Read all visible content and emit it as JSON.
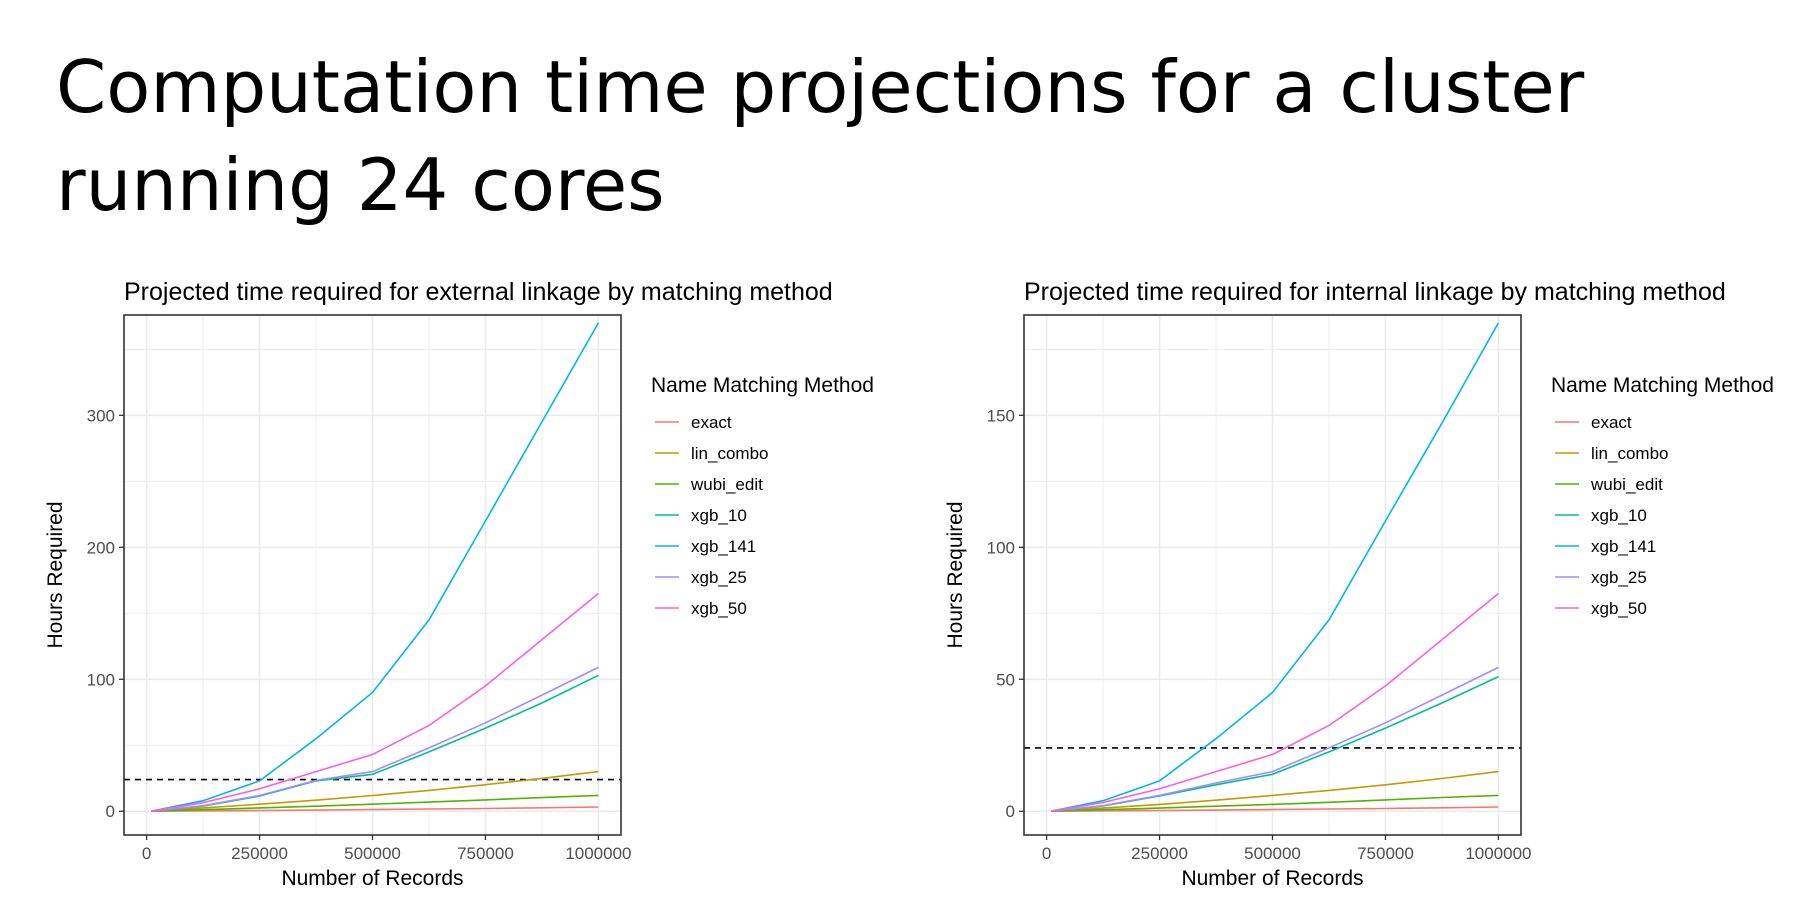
{
  "slide": {
    "title_line1": "Computation time projections for a cluster",
    "title_line2": "running 24 cores"
  },
  "colors": {
    "exact": "#F8766D",
    "lin_combo": "#C49A00",
    "wubi_edit": "#53B400",
    "xgb_10": "#00C094",
    "xgb_141": "#00B6EB",
    "xgb_25": "#A58AFF",
    "xgb_50": "#FB61D7",
    "reference_line": "#000000"
  },
  "chart_data": [
    {
      "type": "line",
      "title": "Projected time required for external linkage by matching method",
      "xlabel": "Number of Records",
      "ylabel": "Hours Required",
      "xlim": [
        -50000,
        1050000
      ],
      "ylim": [
        -18,
        376
      ],
      "x_ticks": [
        0,
        250000,
        500000,
        750000,
        1000000
      ],
      "y_ticks": [
        0,
        100,
        200,
        300
      ],
      "x_tick_labels": [
        "0",
        "250000",
        "500000",
        "750000",
        "1000000"
      ],
      "y_tick_labels": [
        "0",
        "100",
        "200",
        "300"
      ],
      "grid": true,
      "legend": {
        "title": "Name Matching Method",
        "position": "right"
      },
      "reference_line": {
        "y": 24,
        "style": "dashed"
      },
      "x": [
        10000,
        125000,
        250000,
        375000,
        500000,
        625000,
        750000,
        875000,
        1000000
      ],
      "series": [
        {
          "name": "exact",
          "values": [
            0,
            0.3,
            0.6,
            0.9,
            1.3,
            1.7,
            2.1,
            2.6,
            3.2
          ]
        },
        {
          "name": "lin_combo",
          "values": [
            0,
            2.5,
            5.3,
            8.4,
            11.9,
            15.8,
            20.1,
            24.9,
            30
          ]
        },
        {
          "name": "wubi_edit",
          "values": [
            0,
            1.2,
            2.5,
            3.8,
            5.3,
            6.9,
            8.6,
            10.3,
            12
          ]
        },
        {
          "name": "xgb_10",
          "values": [
            0,
            3.9,
            11.5,
            23,
            28,
            45,
            63,
            82,
            103
          ]
        },
        {
          "name": "xgb_141",
          "values": [
            0,
            8,
            23,
            55,
            90,
            145,
            220,
            295,
            370
          ]
        },
        {
          "name": "xgb_25",
          "values": [
            0,
            4.2,
            11.9,
            23.4,
            30,
            48,
            67,
            88,
            109
          ]
        },
        {
          "name": "xgb_50",
          "values": [
            0,
            6.5,
            17,
            30,
            43,
            65,
            95,
            130,
            165
          ]
        }
      ]
    },
    {
      "type": "line",
      "title": "Projected time required for internal linkage by matching method",
      "xlabel": "Number of Records",
      "ylabel": "Hours Required",
      "xlim": [
        -50000,
        1050000
      ],
      "ylim": [
        -9,
        188
      ],
      "x_ticks": [
        0,
        250000,
        500000,
        750000,
        1000000
      ],
      "y_ticks": [
        0,
        50,
        100,
        150
      ],
      "x_tick_labels": [
        "0",
        "250000",
        "500000",
        "750000",
        "1000000"
      ],
      "y_tick_labels": [
        "0",
        "50",
        "100",
        "150"
      ],
      "grid": true,
      "legend": {
        "title": "Name Matching Method",
        "position": "right"
      },
      "reference_line": {
        "y": 24,
        "style": "dashed"
      },
      "x": [
        10000,
        125000,
        250000,
        375000,
        500000,
        625000,
        750000,
        875000,
        1000000
      ],
      "series": [
        {
          "name": "exact",
          "values": [
            0,
            0.15,
            0.3,
            0.45,
            0.65,
            0.85,
            1.05,
            1.3,
            1.6
          ]
        },
        {
          "name": "lin_combo",
          "values": [
            0,
            1.2,
            2.6,
            4.2,
            6,
            7.9,
            10,
            12.4,
            15
          ]
        },
        {
          "name": "wubi_edit",
          "values": [
            0,
            0.6,
            1.2,
            1.9,
            2.6,
            3.4,
            4.3,
            5.2,
            6
          ]
        },
        {
          "name": "xgb_10",
          "values": [
            0,
            2,
            5.8,
            10,
            14,
            22.5,
            31.5,
            41,
            51
          ]
        },
        {
          "name": "xgb_141",
          "values": [
            0,
            4,
            11.5,
            27.5,
            45,
            72.5,
            110,
            147,
            185
          ]
        },
        {
          "name": "xgb_25",
          "values": [
            0,
            2.1,
            6,
            10.7,
            15,
            24,
            33.5,
            44,
            54.5
          ]
        },
        {
          "name": "xgb_50",
          "values": [
            0,
            3.3,
            8.5,
            15,
            21.5,
            32.5,
            47.5,
            65,
            82.5
          ]
        }
      ]
    }
  ]
}
